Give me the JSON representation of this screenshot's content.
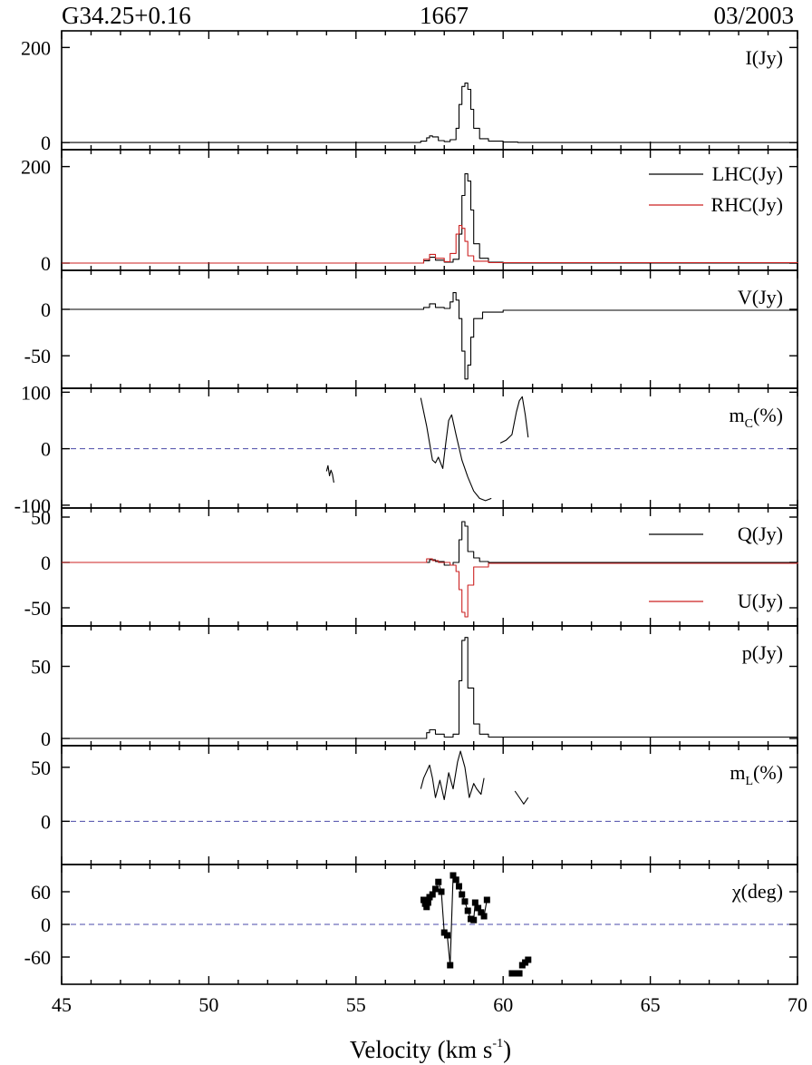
{
  "header": {
    "source": "G34.25+0.16",
    "frequency": "1667",
    "epoch": "03/2003"
  },
  "chart_data": {
    "type": "line",
    "xlabel": "Velocity (km s",
    "xlabel_exp": "-1",
    "xlabel_close": ")",
    "xlim": [
      45,
      70
    ],
    "xticks": [
      45,
      50,
      55,
      60,
      65,
      70
    ],
    "panels": [
      {
        "id": "I",
        "ylim": [
          -15,
          235
        ],
        "yticks": [
          0,
          200
        ],
        "legend": [
          {
            "label": "I(Jy)",
            "color": "#000000"
          }
        ],
        "series": [
          {
            "color": "#000000",
            "kind": "spectrum",
            "points": [
              [
                45,
                0
              ],
              [
                57.0,
                0
              ],
              [
                57.2,
                3
              ],
              [
                57.4,
                10
              ],
              [
                57.5,
                14
              ],
              [
                57.6,
                12
              ],
              [
                57.8,
                4
              ],
              [
                58.0,
                2
              ],
              [
                58.2,
                6
              ],
              [
                58.4,
                30
              ],
              [
                58.5,
                80
              ],
              [
                58.6,
                118
              ],
              [
                58.7,
                125
              ],
              [
                58.8,
                112
              ],
              [
                58.9,
                70
              ],
              [
                59.0,
                30
              ],
              [
                59.2,
                8
              ],
              [
                59.5,
                3
              ],
              [
                60,
                1
              ],
              [
                60.5,
                0
              ],
              [
                70,
                0
              ]
            ]
          }
        ]
      },
      {
        "id": "LHC-RHC",
        "ylim": [
          -15,
          235
        ],
        "yticks": [
          0,
          200
        ],
        "legend": [
          {
            "label": "LHC(Jy)",
            "color": "#000000"
          },
          {
            "label": "RHC(Jy)",
            "color": "#cc2222"
          }
        ],
        "series": [
          {
            "color": "#000000",
            "kind": "spectrum",
            "points": [
              [
                45,
                0
              ],
              [
                57.0,
                0
              ],
              [
                57.3,
                5
              ],
              [
                57.5,
                12
              ],
              [
                57.7,
                6
              ],
              [
                58.0,
                2
              ],
              [
                58.3,
                8
              ],
              [
                58.5,
                60
              ],
              [
                58.6,
                140
              ],
              [
                58.7,
                185
              ],
              [
                58.8,
                170
              ],
              [
                58.9,
                110
              ],
              [
                59.0,
                40
              ],
              [
                59.2,
                10
              ],
              [
                59.5,
                2
              ],
              [
                60,
                0
              ],
              [
                70,
                0
              ]
            ]
          },
          {
            "color": "#cc2222",
            "kind": "spectrum",
            "points": [
              [
                45,
                0
              ],
              [
                57.0,
                0
              ],
              [
                57.3,
                8
              ],
              [
                57.5,
                18
              ],
              [
                57.7,
                10
              ],
              [
                58.0,
                3
              ],
              [
                58.2,
                20
              ],
              [
                58.4,
                60
              ],
              [
                58.5,
                78
              ],
              [
                58.6,
                72
              ],
              [
                58.7,
                45
              ],
              [
                58.8,
                15
              ],
              [
                59.0,
                4
              ],
              [
                59.5,
                1
              ],
              [
                70,
                0
              ]
            ]
          }
        ]
      },
      {
        "id": "V",
        "ylim": [
          -85,
          42
        ],
        "yticks": [
          0,
          -50
        ],
        "legend": [
          {
            "label": "V(Jy)",
            "color": "#000000"
          }
        ],
        "series": [
          {
            "color": "#000000",
            "kind": "spectrum",
            "points": [
              [
                45,
                0
              ],
              [
                57.0,
                0
              ],
              [
                57.3,
                2
              ],
              [
                57.5,
                6
              ],
              [
                57.7,
                2
              ],
              [
                58.0,
                1
              ],
              [
                58.2,
                8
              ],
              [
                58.3,
                18
              ],
              [
                58.4,
                10
              ],
              [
                58.5,
                -10
              ],
              [
                58.6,
                -45
              ],
              [
                58.7,
                -75
              ],
              [
                58.8,
                -60
              ],
              [
                58.9,
                -30
              ],
              [
                59.0,
                -10
              ],
              [
                59.3,
                -3
              ],
              [
                60,
                -1
              ],
              [
                70,
                0
              ]
            ]
          }
        ]
      },
      {
        "id": "mc",
        "ylim": [
          -105,
          107
        ],
        "yticks": [
          100,
          0,
          -100
        ],
        "ref": 0,
        "legend": [
          {
            "label": "m",
            "sub": "C",
            "tail": "(%)",
            "color": "#000000"
          }
        ],
        "series": [
          {
            "color": "#000000",
            "kind": "line",
            "points": [
              [
                54.0,
                -40
              ],
              [
                54.05,
                -30
              ],
              [
                54.1,
                -48
              ],
              [
                54.15,
                -38
              ],
              [
                54.2,
                -45
              ],
              [
                54.25,
                -60
              ]
            ]
          },
          {
            "color": "#000000",
            "kind": "line",
            "points": [
              [
                57.2,
                90
              ],
              [
                57.4,
                40
              ],
              [
                57.6,
                -20
              ],
              [
                57.7,
                -25
              ],
              [
                57.8,
                -15
              ],
              [
                57.95,
                -35
              ],
              [
                58.05,
                10
              ],
              [
                58.15,
                50
              ],
              [
                58.25,
                60
              ],
              [
                58.4,
                25
              ],
              [
                58.6,
                -20
              ],
              [
                58.8,
                -50
              ],
              [
                59.0,
                -75
              ],
              [
                59.2,
                -88
              ],
              [
                59.4,
                -92
              ],
              [
                59.6,
                -88
              ]
            ]
          },
          {
            "color": "#000000",
            "kind": "line",
            "points": [
              [
                59.9,
                10
              ],
              [
                60.1,
                15
              ],
              [
                60.3,
                25
              ],
              [
                60.45,
                65
              ],
              [
                60.55,
                85
              ],
              [
                60.65,
                92
              ],
              [
                60.75,
                60
              ],
              [
                60.85,
                20
              ]
            ]
          }
        ]
      },
      {
        "id": "QU",
        "ylim": [
          -70,
          60
        ],
        "yticks": [
          50,
          0,
          -50
        ],
        "legend": [
          {
            "label": "Q(Jy)",
            "color": "#000000"
          },
          {
            "label": "U(Jy)",
            "color": "#cc2222"
          }
        ],
        "series": [
          {
            "color": "#000000",
            "kind": "spectrum",
            "points": [
              [
                45,
                0
              ],
              [
                57.3,
                0
              ],
              [
                57.5,
                3
              ],
              [
                57.7,
                1
              ],
              [
                58.0,
                -3
              ],
              [
                58.3,
                0
              ],
              [
                58.5,
                25
              ],
              [
                58.6,
                45
              ],
              [
                58.7,
                40
              ],
              [
                58.8,
                12
              ],
              [
                59.0,
                5
              ],
              [
                59.2,
                1
              ],
              [
                59.5,
                0
              ],
              [
                70,
                0
              ]
            ]
          },
          {
            "color": "#cc2222",
            "kind": "spectrum",
            "points": [
              [
                45,
                0
              ],
              [
                57.2,
                0
              ],
              [
                57.4,
                4
              ],
              [
                57.6,
                2
              ],
              [
                57.8,
                0
              ],
              [
                58.2,
                -3
              ],
              [
                58.4,
                -10
              ],
              [
                58.5,
                -30
              ],
              [
                58.6,
                -55
              ],
              [
                58.7,
                -60
              ],
              [
                58.8,
                -25
              ],
              [
                59.0,
                -5
              ],
              [
                59.5,
                -1
              ],
              [
                70,
                0
              ]
            ]
          }
        ]
      },
      {
        "id": "p",
        "ylim": [
          -5,
          78
        ],
        "yticks": [
          50,
          0
        ],
        "legend": [
          {
            "label": "p(Jy)",
            "color": "#000000"
          }
        ],
        "series": [
          {
            "color": "#000000",
            "kind": "spectrum",
            "points": [
              [
                45,
                0
              ],
              [
                57.2,
                0
              ],
              [
                57.4,
                4
              ],
              [
                57.5,
                6
              ],
              [
                57.7,
                3
              ],
              [
                58.0,
                1
              ],
              [
                58.3,
                3
              ],
              [
                58.5,
                40
              ],
              [
                58.6,
                68
              ],
              [
                58.7,
                70
              ],
              [
                58.8,
                35
              ],
              [
                59.0,
                10
              ],
              [
                59.2,
                3
              ],
              [
                59.5,
                1
              ],
              [
                70,
                0
              ]
            ]
          }
        ]
      },
      {
        "id": "mL",
        "ylim": [
          -40,
          70
        ],
        "yticks": [
          50,
          0
        ],
        "ref": 0,
        "legend": [
          {
            "label": "m",
            "sub": "L",
            "tail": "(%)",
            "color": "#000000"
          }
        ],
        "series": [
          {
            "color": "#000000",
            "kind": "line",
            "points": [
              [
                57.2,
                30
              ],
              [
                57.3,
                40
              ],
              [
                57.5,
                52
              ],
              [
                57.6,
                40
              ],
              [
                57.7,
                22
              ],
              [
                57.85,
                38
              ],
              [
                58.0,
                20
              ],
              [
                58.15,
                45
              ],
              [
                58.3,
                30
              ],
              [
                58.45,
                55
              ],
              [
                58.55,
                65
              ],
              [
                58.7,
                50
              ],
              [
                58.85,
                22
              ],
              [
                59.0,
                35
              ],
              [
                59.1,
                30
              ],
              [
                59.25,
                25
              ],
              [
                59.35,
                40
              ]
            ]
          },
          {
            "color": "#000000",
            "kind": "line",
            "points": [
              [
                60.4,
                28
              ],
              [
                60.6,
                20
              ],
              [
                60.7,
                16
              ],
              [
                60.85,
                22
              ]
            ]
          }
        ]
      },
      {
        "id": "chi",
        "ylim": [
          -110,
          110
        ],
        "yticks": [
          60,
          0,
          -60
        ],
        "ref": 0,
        "legend": [
          {
            "label": "χ(deg)",
            "color": "#000000"
          }
        ],
        "series": [
          {
            "color": "#000000",
            "kind": "points+line",
            "points": [
              [
                57.3,
                45
              ],
              [
                57.35,
                38
              ],
              [
                57.4,
                32
              ],
              [
                57.45,
                40
              ],
              [
                57.5,
                50
              ],
              [
                57.6,
                55
              ],
              [
                57.7,
                65
              ],
              [
                57.8,
                78
              ],
              [
                57.9,
                60
              ],
              [
                58.0,
                -15
              ],
              [
                58.1,
                -20
              ],
              [
                58.2,
                -75
              ],
              [
                58.3,
                90
              ],
              [
                58.4,
                82
              ],
              [
                58.5,
                70
              ],
              [
                58.6,
                55
              ],
              [
                58.7,
                42
              ],
              [
                58.8,
                25
              ],
              [
                58.9,
                10
              ],
              [
                59.0,
                8
              ],
              [
                59.05,
                40
              ],
              [
                59.15,
                30
              ],
              [
                59.25,
                22
              ],
              [
                59.35,
                15
              ],
              [
                59.45,
                45
              ],
              [
                60.3,
                -90
              ],
              [
                60.45,
                -90
              ],
              [
                60.55,
                -90
              ],
              [
                60.65,
                -75
              ],
              [
                60.75,
                -70
              ],
              [
                60.85,
                -65
              ]
            ]
          }
        ]
      }
    ]
  }
}
